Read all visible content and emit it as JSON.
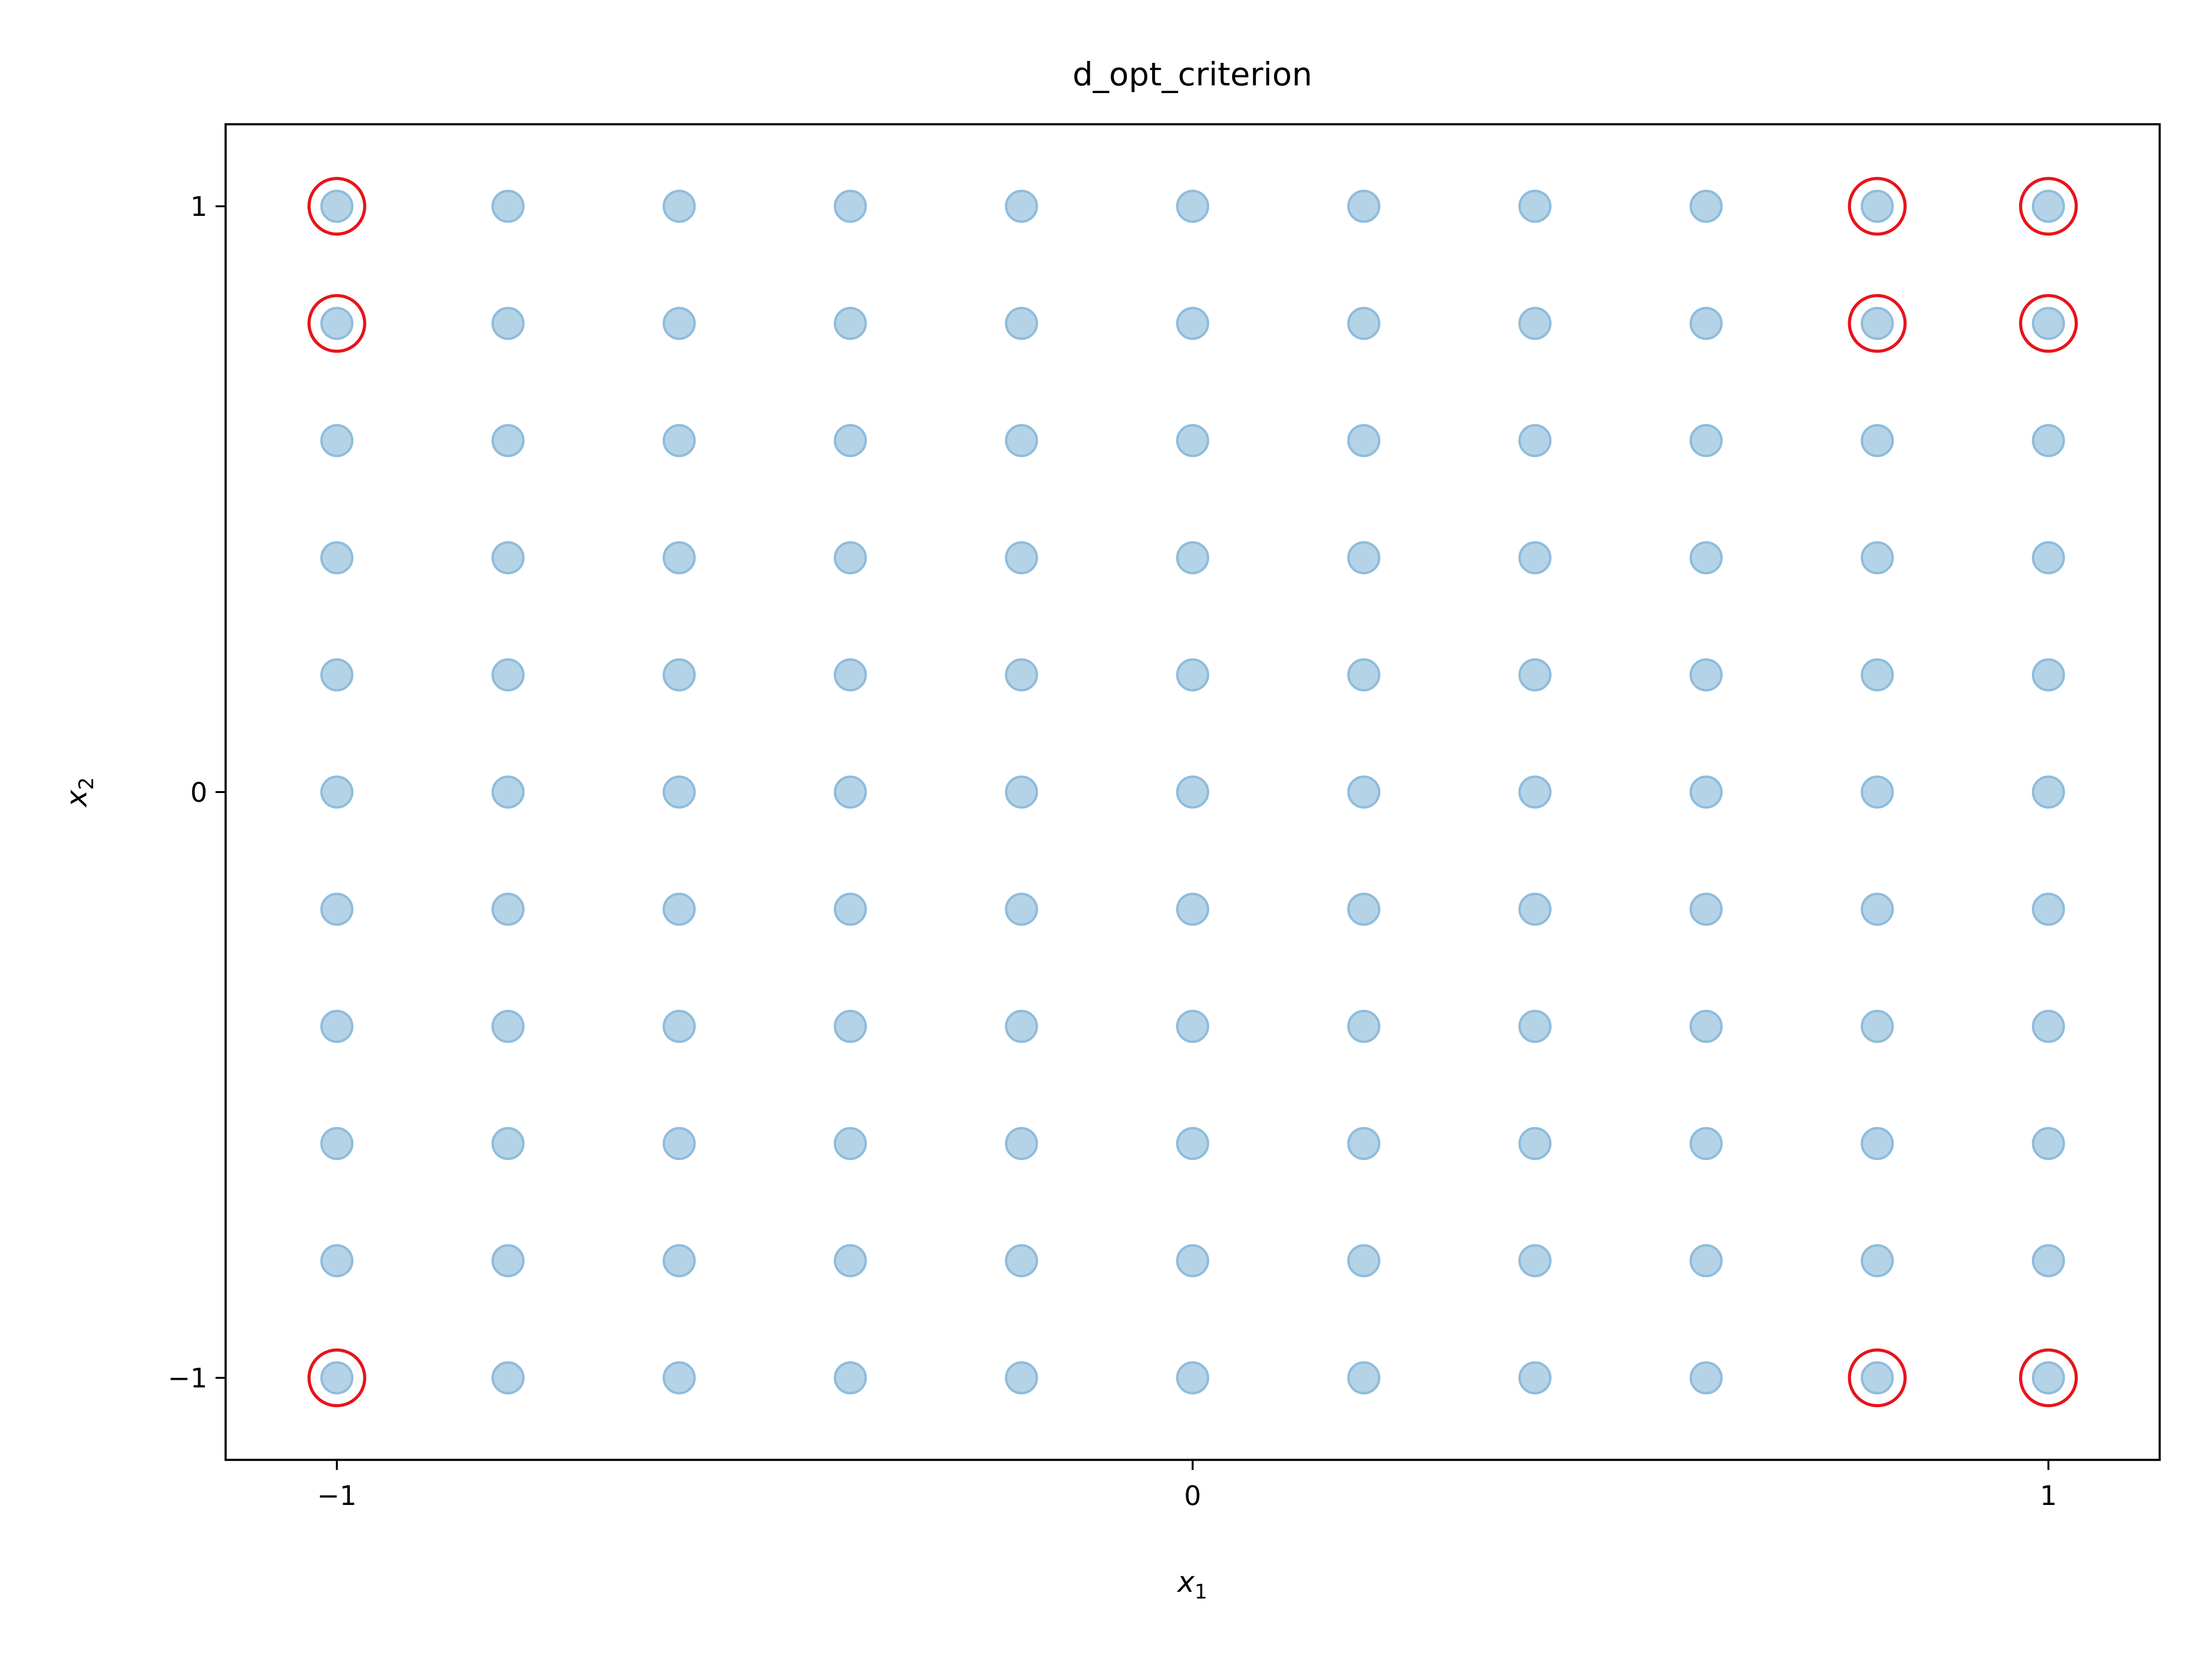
{
  "chart_data": {
    "type": "scatter",
    "title": "d_opt_criterion",
    "xlabel": {
      "base": "x",
      "subscript": "1"
    },
    "ylabel": {
      "base": "x",
      "subscript": "2"
    },
    "xlim": [
      -1.13,
      1.13
    ],
    "ylim": [
      -1.14,
      1.14
    ],
    "xticks": [
      -1,
      0,
      1
    ],
    "yticks": [
      -1,
      0,
      1
    ],
    "xtick_labels": [
      "−1",
      "0",
      "1"
    ],
    "ytick_labels": [
      "−1",
      "0",
      "1"
    ],
    "grid": false,
    "candidate_points": {
      "x_values": [
        -1,
        -0.8,
        -0.6,
        -0.4,
        -0.2,
        0,
        0.2,
        0.4,
        0.6,
        0.8,
        1
      ],
      "y_values": [
        -1,
        -0.8,
        -0.6,
        -0.4,
        -0.2,
        0,
        0.2,
        0.4,
        0.6,
        0.8,
        1
      ],
      "layout": "full grid of x_values × y_values",
      "fill_color": "#b5d3e7",
      "edge_color": "#8fbcdc"
    },
    "selected_points": {
      "points": [
        [
          -1,
          1
        ],
        [
          -1,
          0.8
        ],
        [
          -1,
          -1
        ],
        [
          0.8,
          1
        ],
        [
          0.8,
          0.8
        ],
        [
          0.8,
          -1
        ],
        [
          1,
          1
        ],
        [
          1,
          0.8
        ],
        [
          1,
          -1
        ]
      ],
      "marker": "hollow circle",
      "edge_color": "#e8141c"
    }
  }
}
